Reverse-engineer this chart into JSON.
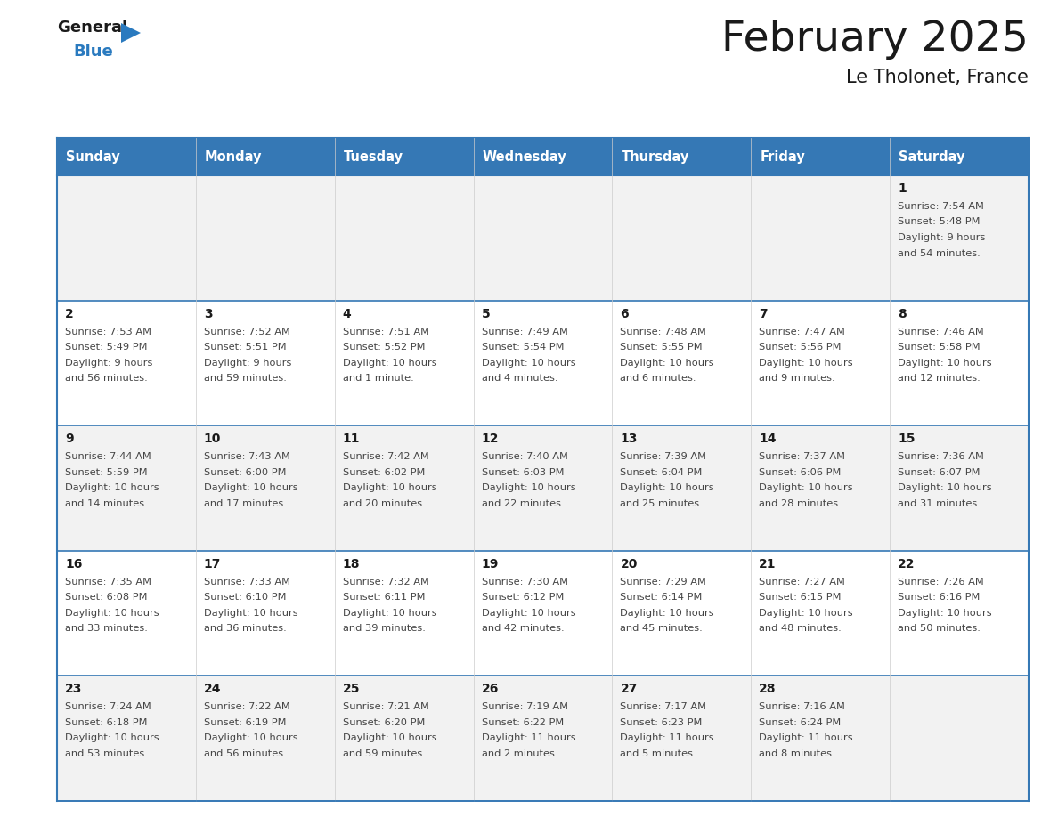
{
  "title": "February 2025",
  "subtitle": "Le Tholonet, France",
  "days_of_week": [
    "Sunday",
    "Monday",
    "Tuesday",
    "Wednesday",
    "Thursday",
    "Friday",
    "Saturday"
  ],
  "header_bg": "#3578b5",
  "header_text": "#ffffff",
  "title_color": "#1a1a1a",
  "subtitle_color": "#1a1a1a",
  "cell_bg_light": "#f2f2f2",
  "cell_bg_white": "#ffffff",
  "day_number_color": "#1a1a1a",
  "info_color": "#444444",
  "border_color": "#3578b5",
  "logo_general_color": "#1a1a1a",
  "logo_blue_color": "#2a7abf",
  "calendar_data": [
    [
      null,
      null,
      null,
      null,
      null,
      null,
      {
        "day": 1,
        "sunrise": "7:54 AM",
        "sunset": "5:48 PM",
        "daylight": "9 hours and 54 minutes."
      }
    ],
    [
      {
        "day": 2,
        "sunrise": "7:53 AM",
        "sunset": "5:49 PM",
        "daylight": "9 hours and 56 minutes."
      },
      {
        "day": 3,
        "sunrise": "7:52 AM",
        "sunset": "5:51 PM",
        "daylight": "9 hours and 59 minutes."
      },
      {
        "day": 4,
        "sunrise": "7:51 AM",
        "sunset": "5:52 PM",
        "daylight": "10 hours and 1 minute."
      },
      {
        "day": 5,
        "sunrise": "7:49 AM",
        "sunset": "5:54 PM",
        "daylight": "10 hours and 4 minutes."
      },
      {
        "day": 6,
        "sunrise": "7:48 AM",
        "sunset": "5:55 PM",
        "daylight": "10 hours and 6 minutes."
      },
      {
        "day": 7,
        "sunrise": "7:47 AM",
        "sunset": "5:56 PM",
        "daylight": "10 hours and 9 minutes."
      },
      {
        "day": 8,
        "sunrise": "7:46 AM",
        "sunset": "5:58 PM",
        "daylight": "10 hours and 12 minutes."
      }
    ],
    [
      {
        "day": 9,
        "sunrise": "7:44 AM",
        "sunset": "5:59 PM",
        "daylight": "10 hours and 14 minutes."
      },
      {
        "day": 10,
        "sunrise": "7:43 AM",
        "sunset": "6:00 PM",
        "daylight": "10 hours and 17 minutes."
      },
      {
        "day": 11,
        "sunrise": "7:42 AM",
        "sunset": "6:02 PM",
        "daylight": "10 hours and 20 minutes."
      },
      {
        "day": 12,
        "sunrise": "7:40 AM",
        "sunset": "6:03 PM",
        "daylight": "10 hours and 22 minutes."
      },
      {
        "day": 13,
        "sunrise": "7:39 AM",
        "sunset": "6:04 PM",
        "daylight": "10 hours and 25 minutes."
      },
      {
        "day": 14,
        "sunrise": "7:37 AM",
        "sunset": "6:06 PM",
        "daylight": "10 hours and 28 minutes."
      },
      {
        "day": 15,
        "sunrise": "7:36 AM",
        "sunset": "6:07 PM",
        "daylight": "10 hours and 31 minutes."
      }
    ],
    [
      {
        "day": 16,
        "sunrise": "7:35 AM",
        "sunset": "6:08 PM",
        "daylight": "10 hours and 33 minutes."
      },
      {
        "day": 17,
        "sunrise": "7:33 AM",
        "sunset": "6:10 PM",
        "daylight": "10 hours and 36 minutes."
      },
      {
        "day": 18,
        "sunrise": "7:32 AM",
        "sunset": "6:11 PM",
        "daylight": "10 hours and 39 minutes."
      },
      {
        "day": 19,
        "sunrise": "7:30 AM",
        "sunset": "6:12 PM",
        "daylight": "10 hours and 42 minutes."
      },
      {
        "day": 20,
        "sunrise": "7:29 AM",
        "sunset": "6:14 PM",
        "daylight": "10 hours and 45 minutes."
      },
      {
        "day": 21,
        "sunrise": "7:27 AM",
        "sunset": "6:15 PM",
        "daylight": "10 hours and 48 minutes."
      },
      {
        "day": 22,
        "sunrise": "7:26 AM",
        "sunset": "6:16 PM",
        "daylight": "10 hours and 50 minutes."
      }
    ],
    [
      {
        "day": 23,
        "sunrise": "7:24 AM",
        "sunset": "6:18 PM",
        "daylight": "10 hours and 53 minutes."
      },
      {
        "day": 24,
        "sunrise": "7:22 AM",
        "sunset": "6:19 PM",
        "daylight": "10 hours and 56 minutes."
      },
      {
        "day": 25,
        "sunrise": "7:21 AM",
        "sunset": "6:20 PM",
        "daylight": "10 hours and 59 minutes."
      },
      {
        "day": 26,
        "sunrise": "7:19 AM",
        "sunset": "6:22 PM",
        "daylight": "11 hours and 2 minutes."
      },
      {
        "day": 27,
        "sunrise": "7:17 AM",
        "sunset": "6:23 PM",
        "daylight": "11 hours and 5 minutes."
      },
      {
        "day": 28,
        "sunrise": "7:16 AM",
        "sunset": "6:24 PM",
        "daylight": "11 hours and 8 minutes."
      },
      null
    ]
  ]
}
